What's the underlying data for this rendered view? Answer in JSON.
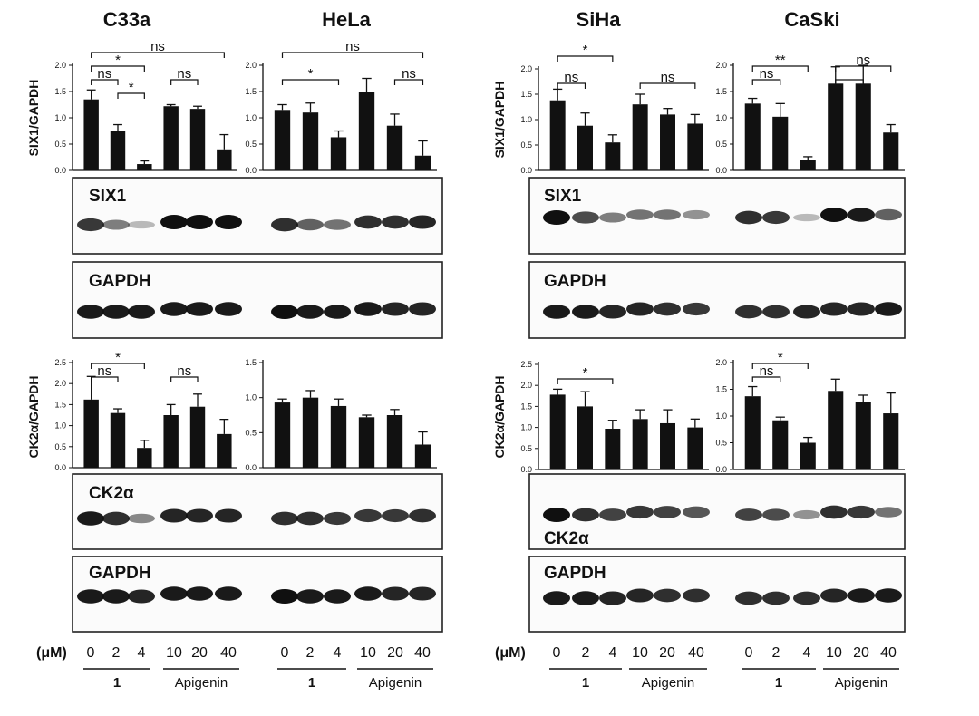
{
  "cell_lines": [
    "C33a",
    "HeLa",
    "SiHa",
    "CaSki"
  ],
  "ylabels": {
    "six1": "SIX1/GAPDH",
    "ck2a": "CK2α/GAPDH"
  },
  "blot_labels": {
    "six1": "SIX1",
    "gapdh": "GAPDH",
    "ck2a": "CK2α"
  },
  "axis": {
    "unit": "(μM)",
    "concentrations": [
      "0",
      "2",
      "4",
      "10",
      "20",
      "40"
    ],
    "group_labels": [
      "1",
      "Apigenin"
    ]
  },
  "chart_data": [
    {
      "type": "bar",
      "cell_line": "C33a",
      "ylabel": "SIX1/GAPDH",
      "ylim": [
        0,
        2.0
      ],
      "yticks": [
        "0.0",
        "0.5",
        "1.0",
        "1.5",
        "2.0"
      ],
      "categories": [
        "0",
        "2",
        "4",
        "10",
        "20",
        "40"
      ],
      "values": [
        1.35,
        0.75,
        0.12,
        1.22,
        1.17,
        0.4
      ],
      "errors": [
        0.18,
        0.12,
        0.06,
        0.03,
        0.05,
        0.28
      ],
      "significance": [
        {
          "from": 0,
          "to": 5,
          "label": "ns",
          "level": 3
        },
        {
          "from": 0,
          "to": 2,
          "label": "*",
          "level": 2
        },
        {
          "from": 0,
          "to": 1,
          "label": "ns",
          "level": 1
        },
        {
          "from": 1,
          "to": 2,
          "label": "*",
          "level": 0
        },
        {
          "from": 3,
          "to": 4,
          "label": "ns",
          "level": 1
        }
      ]
    },
    {
      "type": "bar",
      "cell_line": "HeLa",
      "ylabel": "",
      "ylim": [
        0,
        2.0
      ],
      "yticks": [
        "0.0",
        "0.5",
        "1.0",
        "1.5",
        "2.0"
      ],
      "categories": [
        "0",
        "2",
        "4",
        "10",
        "20",
        "40"
      ],
      "values": [
        1.15,
        1.1,
        0.63,
        1.5,
        0.85,
        0.28
      ],
      "errors": [
        0.1,
        0.18,
        0.12,
        0.25,
        0.22,
        0.28
      ],
      "significance": [
        {
          "from": 0,
          "to": 5,
          "label": "ns",
          "level": 3
        },
        {
          "from": 0,
          "to": 2,
          "label": "*",
          "level": 1
        },
        {
          "from": 4,
          "to": 5,
          "label": "ns",
          "level": 1
        }
      ]
    },
    {
      "type": "bar",
      "cell_line": "SiHa",
      "ylabel": "SIX1/GAPDH",
      "ylim": [
        0,
        2.0
      ],
      "yticks": [
        "0.0",
        "0.5",
        "1.0",
        "1.5",
        "2.0"
      ],
      "categories": [
        "0",
        "2",
        "4",
        "10",
        "20",
        "40"
      ],
      "values": [
        1.38,
        0.88,
        0.55,
        1.3,
        1.1,
        0.92
      ],
      "errors": [
        0.22,
        0.25,
        0.15,
        0.2,
        0.12,
        0.18
      ],
      "significance": [
        {
          "from": 0,
          "to": 2,
          "label": "*",
          "level": 3
        },
        {
          "from": 0,
          "to": 1,
          "label": "ns",
          "level": 1
        },
        {
          "from": 3,
          "to": 5,
          "label": "ns",
          "level": 1
        }
      ]
    },
    {
      "type": "bar",
      "cell_line": "CaSki",
      "ylabel": "",
      "ylim": [
        0,
        2.0
      ],
      "yticks": [
        "0.0",
        "0.5",
        "1.0",
        "1.5",
        "2.0"
      ],
      "categories": [
        "0",
        "2",
        "4",
        "10",
        "20",
        "40"
      ],
      "values": [
        1.27,
        1.02,
        0.2,
        1.65,
        1.65,
        0.72
      ],
      "errors": [
        0.1,
        0.25,
        0.06,
        0.32,
        0.35,
        0.15
      ],
      "significance": [
        {
          "from": 0,
          "to": 2,
          "label": "**",
          "level": 2
        },
        {
          "from": 0,
          "to": 1,
          "label": "ns",
          "level": 1
        },
        {
          "from": 3,
          "to": 4,
          "label": "",
          "level": 1
        },
        {
          "from": 3,
          "to": 5,
          "label": "ns",
          "level": 2
        }
      ]
    },
    {
      "type": "bar",
      "cell_line": "C33a",
      "ylabel": "CK2α/GAPDH",
      "ylim": [
        0,
        2.5
      ],
      "yticks": [
        "0.0",
        "0.5",
        "1.0",
        "1.5",
        "2.0",
        "2.5"
      ],
      "categories": [
        "0",
        "2",
        "4",
        "10",
        "20",
        "40"
      ],
      "values": [
        1.62,
        1.3,
        0.47,
        1.25,
        1.45,
        0.8
      ],
      "errors": [
        0.55,
        0.1,
        0.18,
        0.25,
        0.3,
        0.35
      ],
      "significance": [
        {
          "from": 0,
          "to": 2,
          "label": "*",
          "level": 2
        },
        {
          "from": 0,
          "to": 1,
          "label": "ns",
          "level": 1
        },
        {
          "from": 3,
          "to": 4,
          "label": "ns",
          "level": 1
        }
      ]
    },
    {
      "type": "bar",
      "cell_line": "HeLa",
      "ylabel": "",
      "ylim": [
        0,
        1.5
      ],
      "yticks": [
        "0.0",
        "0.5",
        "1.0",
        "1.5"
      ],
      "categories": [
        "0",
        "2",
        "4",
        "10",
        "20",
        "40"
      ],
      "values": [
        0.93,
        1.0,
        0.88,
        0.72,
        0.75,
        0.33
      ],
      "errors": [
        0.05,
        0.1,
        0.1,
        0.03,
        0.08,
        0.18
      ],
      "significance": []
    },
    {
      "type": "bar",
      "cell_line": "SiHa",
      "ylabel": "CK2α/GAPDH",
      "ylim": [
        0,
        2.5
      ],
      "yticks": [
        "0.0",
        "0.5",
        "1.0",
        "1.5",
        "2.0",
        "2.5"
      ],
      "categories": [
        "0",
        "2",
        "4",
        "10",
        "20",
        "40"
      ],
      "values": [
        1.78,
        1.5,
        0.97,
        1.2,
        1.1,
        1.0
      ],
      "errors": [
        0.13,
        0.35,
        0.2,
        0.22,
        0.32,
        0.2
      ],
      "significance": [
        {
          "from": 0,
          "to": 2,
          "label": "*",
          "level": 1
        }
      ]
    },
    {
      "type": "bar",
      "cell_line": "CaSki",
      "ylabel": "",
      "ylim": [
        0,
        2.0
      ],
      "yticks": [
        "0.0",
        "0.5",
        "1.0",
        "1.5",
        "2.0"
      ],
      "categories": [
        "0",
        "2",
        "4",
        "10",
        "20",
        "40"
      ],
      "values": [
        1.37,
        0.92,
        0.5,
        1.47,
        1.27,
        1.05
      ],
      "errors": [
        0.18,
        0.06,
        0.1,
        0.22,
        0.12,
        0.38
      ],
      "significance": [
        {
          "from": 0,
          "to": 2,
          "label": "*",
          "level": 2
        },
        {
          "from": 0,
          "to": 1,
          "label": "ns",
          "level": 1
        }
      ]
    }
  ],
  "blots": {
    "C33a": {
      "six1": [
        0.8,
        0.45,
        0.15,
        1.0,
        1.0,
        1.0
      ],
      "gapdh_top": [
        0.95,
        0.95,
        0.95,
        0.95,
        0.95,
        0.95
      ],
      "ck2a": [
        0.95,
        0.85,
        0.4,
        0.9,
        0.9,
        0.9
      ],
      "gapdh_bottom": [
        0.95,
        0.95,
        0.9,
        0.95,
        0.95,
        0.95
      ]
    },
    "HeLa": {
      "six1": [
        0.85,
        0.6,
        0.5,
        0.85,
        0.85,
        0.9
      ],
      "gapdh_top": [
        1.0,
        0.95,
        0.95,
        0.95,
        0.9,
        0.9
      ],
      "ck2a": [
        0.85,
        0.85,
        0.8,
        0.8,
        0.8,
        0.85
      ],
      "gapdh_bottom": [
        1.0,
        0.95,
        0.95,
        0.95,
        0.9,
        0.9
      ]
    },
    "SiHa": {
      "six1": [
        1.0,
        0.7,
        0.45,
        0.5,
        0.5,
        0.35
      ],
      "gapdh_top": [
        0.95,
        0.95,
        0.9,
        0.9,
        0.85,
        0.8
      ],
      "ck2a": [
        1.0,
        0.85,
        0.75,
        0.8,
        0.75,
        0.65
      ],
      "gapdh_bottom": [
        0.95,
        0.95,
        0.9,
        0.9,
        0.85,
        0.85
      ]
    },
    "CaSki": {
      "six1": [
        0.85,
        0.8,
        0.15,
        1.0,
        0.95,
        0.6
      ],
      "gapdh_top": [
        0.85,
        0.85,
        0.9,
        0.9,
        0.9,
        0.95
      ],
      "ck2a": [
        0.75,
        0.7,
        0.35,
        0.85,
        0.8,
        0.5
      ],
      "gapdh_bottom": [
        0.85,
        0.85,
        0.85,
        0.9,
        0.95,
        0.95
      ]
    }
  },
  "colors": {
    "bars": "#111111",
    "band": "#101010",
    "frame": "#222222",
    "background": "#ffffff"
  }
}
